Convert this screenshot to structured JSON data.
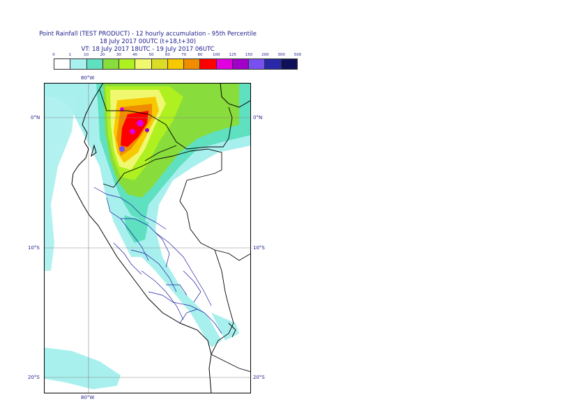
{
  "title": {
    "line1": "Point Rainfall (TEST PRODUCT) - 12 hourly accumulation - 95th Percentile",
    "line2": "18 July 2017 00UTC (t+18,t+30)",
    "line3": "VT: 18 July 2017 18UTC - 19 July 2017 06UTC"
  },
  "legend": {
    "ticks": [
      "0",
      "1",
      "10",
      "20",
      "30",
      "40",
      "50",
      "60",
      "70",
      "80",
      "100",
      "125",
      "150",
      "200",
      "300",
      "500"
    ],
    "colors": [
      "#ffffff",
      "#a8f0ee",
      "#5fe0c0",
      "#88dc3c",
      "#aef020",
      "#f0f870",
      "#dcdc28",
      "#f8c800",
      "#f08c00",
      "#ff0000",
      "#e000e0",
      "#a000c8",
      "#7850f0",
      "#2828a8",
      "#10105a"
    ]
  },
  "axes": {
    "lon_top": "80°W",
    "lon_bottom": "80°W",
    "lat_labels": [
      "0°N",
      "10°S",
      "20°S"
    ]
  }
}
